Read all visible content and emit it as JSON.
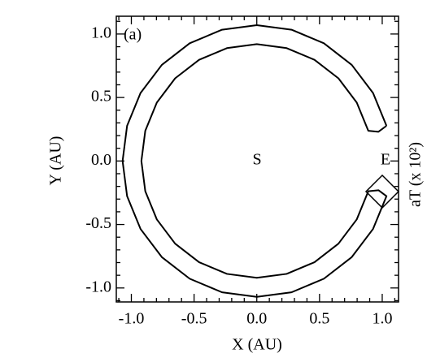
{
  "chart_data": {
    "type": "line",
    "panel_label": "(a)",
    "x_label": "X (AU)",
    "y_label": "Y (AU)",
    "right_label": "aT (x 10²)",
    "annotations": [
      "S",
      "E"
    ],
    "xlim": [
      -1.12,
      1.13
    ],
    "ylim": [
      -1.11,
      1.14
    ],
    "xticks": [
      {
        "value": -1,
        "label": "-1.0"
      },
      -0.5,
      {
        "value": 0,
        "label": "0.0"
      },
      0.5,
      {
        "value": 1,
        "label": "1.0"
      }
    ],
    "yticks": [
      {
        "value": -1,
        "label": "-1.0"
      },
      -0.5,
      {
        "value": 0,
        "label": "0.0"
      },
      0.5,
      {
        "value": 1,
        "label": "1.0"
      }
    ],
    "xminorticks": [
      -1.1,
      -0.9,
      -0.8,
      -0.7,
      -0.6,
      -0.4,
      -0.3,
      -0.2,
      -0.1,
      0.1,
      0.2,
      0.3,
      0.4,
      0.6,
      0.7,
      0.8,
      0.9,
      1.1
    ],
    "yminorticks": [
      -1.1,
      -0.9,
      -0.8,
      -0.7,
      -0.6,
      -0.4,
      -0.3,
      -0.2,
      -0.1,
      0.1,
      0.2,
      0.3,
      0.4,
      0.6,
      0.7,
      0.8,
      0.9,
      1.1
    ],
    "series": [
      {
        "color": "#000000",
        "x": [
          1.034,
          0.927,
          0.757,
          0.535,
          0.277,
          0,
          -0.277,
          -0.535,
          -0.757,
          -0.927,
          -1.034,
          -1.07,
          -1.034,
          -0.927,
          -0.757,
          -0.535,
          -0.277,
          0,
          0.277,
          0.535,
          0.757,
          0.927,
          1.034,
          0.97,
          0.889,
          0.797,
          0.651,
          0.46,
          0.238,
          0,
          -0.238,
          -0.46,
          -0.651,
          -0.797,
          -0.889,
          -0.92,
          -0.889,
          -0.797,
          -0.651,
          -0.46,
          -0.238,
          0,
          0.238,
          0.46,
          0.651,
          0.797,
          0.889,
          0.97,
          1.034
        ],
        "y": [
          0.277,
          0.535,
          0.757,
          0.927,
          1.034,
          1.07,
          1.034,
          0.927,
          0.757,
          0.535,
          0.277,
          0,
          -0.277,
          -0.535,
          -0.757,
          -0.927,
          -1.034,
          -1.07,
          -1.034,
          -0.927,
          -0.757,
          -0.535,
          -0.277,
          -0.23,
          -0.238,
          -0.46,
          -0.651,
          -0.797,
          -0.889,
          -0.92,
          -0.889,
          -0.797,
          -0.651,
          -0.46,
          -0.238,
          0,
          0.238,
          0.46,
          0.651,
          0.797,
          0.889,
          0.92,
          0.889,
          0.797,
          0.651,
          0.46,
          0.238,
          0.23,
          0.277
        ]
      }
    ]
  }
}
